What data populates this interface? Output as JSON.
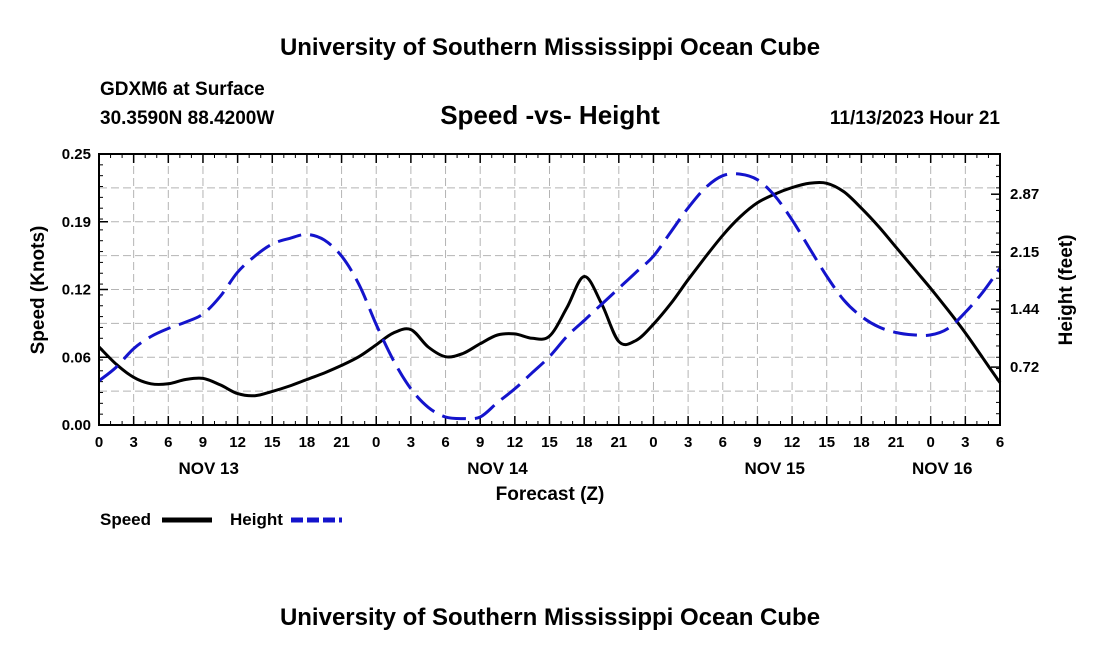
{
  "header": {
    "title_top": "University of Southern Mississippi Ocean Cube",
    "station": "GDXM6 at Surface",
    "coords": "30.3590N  88.4200W",
    "plot_title": "Speed -vs- Height",
    "datetime": "11/13/2023 Hour 21",
    "title_bottom": "University of Southern Mississippi Ocean Cube"
  },
  "chart_data": {
    "type": "line",
    "title": "Speed -vs- Height",
    "xlabel": "Forecast (Z)",
    "ylabel_left": "Speed (Knots)",
    "ylabel_right": "Height (feet)",
    "x_range_hours": [
      0,
      78
    ],
    "y_left_range": [
      0,
      0.25
    ],
    "y_right_range": [
      0,
      3.37
    ],
    "y_left_ticks": [
      "0.00",
      "0.06",
      "0.12",
      "0.19",
      "0.25"
    ],
    "y_left_tick_values": [
      0,
      0.0625,
      0.125,
      0.1875,
      0.25
    ],
    "y_right_ticks": [
      "0.72",
      "1.44",
      "2.15",
      "2.87"
    ],
    "y_right_tick_values": [
      0.72,
      1.44,
      2.15,
      2.87
    ],
    "x_tick_labels": [
      "0",
      "3",
      "6",
      "9",
      "12",
      "15",
      "18",
      "21",
      "0",
      "3",
      "6",
      "9",
      "12",
      "15",
      "18",
      "21",
      "0",
      "3",
      "6",
      "9",
      "12",
      "15",
      "18",
      "21",
      "0",
      "3",
      "6"
    ],
    "day_labels": [
      {
        "label": "NOV 13",
        "hour": 9.5
      },
      {
        "label": "NOV 14",
        "hour": 34.5
      },
      {
        "label": "NOV 15",
        "hour": 58.5
      },
      {
        "label": "NOV 16",
        "hour": 73
      }
    ],
    "grid": true,
    "legend_position": "bottom-left",
    "series": [
      {
        "name": "Speed",
        "axis": "left",
        "color": "#000000",
        "dash": "solid",
        "x": [
          0,
          1.5,
          3,
          4.5,
          6,
          7.5,
          9,
          10.5,
          12,
          13.5,
          15,
          16.5,
          18,
          19.5,
          21,
          22.5,
          24,
          25.5,
          27,
          28.5,
          30,
          31.5,
          33,
          34.5,
          36,
          37.5,
          39,
          40.5,
          42,
          43.5,
          45,
          46.5,
          48,
          49.5,
          51,
          52.5,
          54,
          55.5,
          57,
          58.5,
          60,
          61.5,
          63,
          64.5,
          66,
          67.5,
          69,
          70.5,
          72,
          73.5,
          75,
          76.5,
          78
        ],
        "values": [
          0.072,
          0.056,
          0.044,
          0.038,
          0.038,
          0.042,
          0.043,
          0.037,
          0.029,
          0.027,
          0.031,
          0.036,
          0.042,
          0.048,
          0.055,
          0.063,
          0.074,
          0.085,
          0.088,
          0.072,
          0.063,
          0.066,
          0.075,
          0.083,
          0.084,
          0.08,
          0.082,
          0.108,
          0.137,
          0.112,
          0.077,
          0.078,
          0.093,
          0.112,
          0.134,
          0.155,
          0.175,
          0.192,
          0.205,
          0.213,
          0.219,
          0.223,
          0.223,
          0.215,
          0.2,
          0.183,
          0.164,
          0.145,
          0.126,
          0.106,
          0.085,
          0.062,
          0.039
        ]
      },
      {
        "name": "Height",
        "axis": "right",
        "color": "#1414cc",
        "dash": "dashed",
        "x": [
          0,
          1.5,
          3,
          4.5,
          6,
          7.5,
          9,
          10.5,
          12,
          13.5,
          15,
          16.5,
          18,
          19.5,
          21,
          22.5,
          24,
          25.5,
          27,
          28.5,
          30,
          31.5,
          33,
          34.5,
          36,
          37.5,
          39,
          40.5,
          42,
          43.5,
          45,
          46.5,
          48,
          49.5,
          51,
          52.5,
          54,
          55.5,
          57,
          58.5,
          60,
          61.5,
          63,
          64.5,
          66,
          67.5,
          69,
          70.5,
          72,
          73.5,
          75,
          76.5,
          78
        ],
        "values": [
          0.55,
          0.72,
          0.95,
          1.1,
          1.2,
          1.28,
          1.38,
          1.6,
          1.9,
          2.1,
          2.25,
          2.32,
          2.37,
          2.3,
          2.1,
          1.75,
          1.25,
          0.8,
          0.45,
          0.22,
          0.1,
          0.08,
          0.1,
          0.28,
          0.45,
          0.65,
          0.85,
          1.1,
          1.3,
          1.5,
          1.7,
          1.9,
          2.1,
          2.4,
          2.7,
          2.95,
          3.1,
          3.12,
          3.05,
          2.85,
          2.55,
          2.2,
          1.85,
          1.55,
          1.35,
          1.22,
          1.15,
          1.12,
          1.12,
          1.2,
          1.4,
          1.65,
          1.95
        ]
      }
    ]
  },
  "legend": {
    "speed_label": "Speed",
    "height_label": "Height"
  },
  "colors": {
    "speed": "#000000",
    "height": "#1414cc",
    "grid": "#b4b4b4"
  }
}
